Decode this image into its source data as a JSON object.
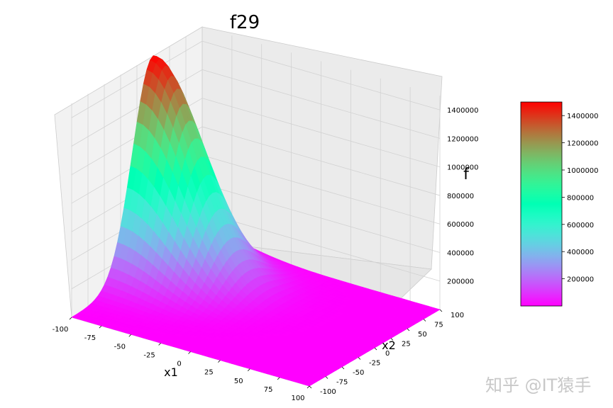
{
  "chart_data": {
    "type": "surface3d",
    "title": "f29",
    "xlabel": "x1",
    "ylabel": "x2",
    "zlabel": "f",
    "xlim": [
      -100,
      100
    ],
    "ylim": [
      -100,
      100
    ],
    "zlim": [
      0,
      1500000
    ],
    "x_ticks": [
      "-100",
      "-75",
      "-50",
      "-25",
      "0",
      "25",
      "50",
      "75",
      "100"
    ],
    "y_ticks": [
      "-100",
      "-75",
      "-50",
      "-25",
      "0",
      "25",
      "50",
      "75",
      "100"
    ],
    "z_ticks": [
      "200000",
      "400000",
      "600000",
      "800000",
      "1000000",
      "1200000",
      "1400000"
    ],
    "peak": {
      "x1": -100,
      "x2": 25,
      "f": 1500000
    },
    "colormap": "rainbow",
    "colorbar": {
      "min": 0,
      "max": 1500000,
      "ticks": [
        "200000",
        "400000",
        "600000",
        "800000",
        "1000000",
        "1200000",
        "1400000"
      ]
    },
    "grid": true
  },
  "watermark": "知乎 @IT猿手"
}
